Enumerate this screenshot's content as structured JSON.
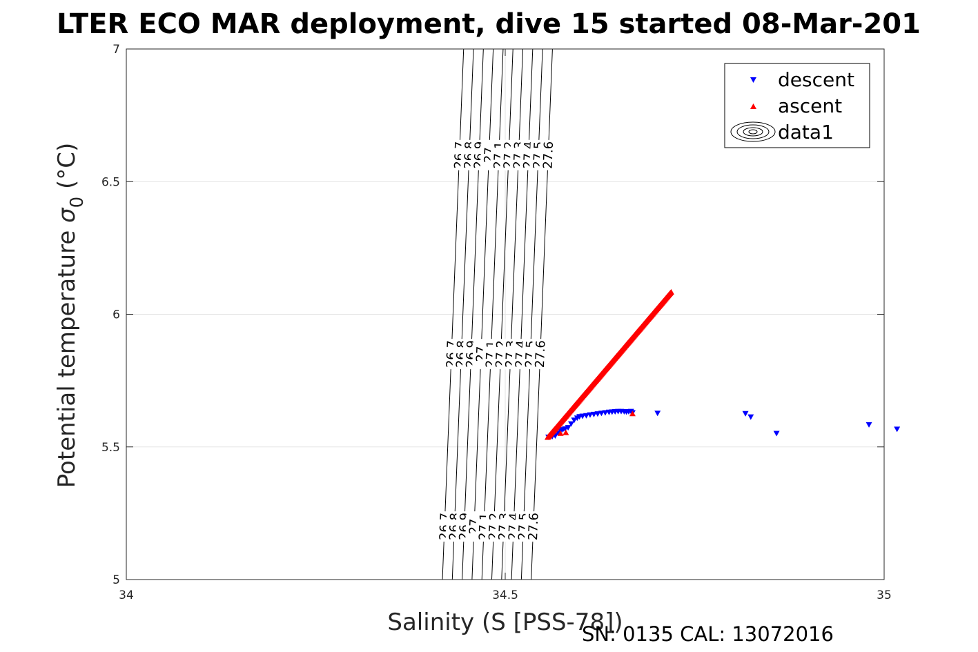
{
  "title": "LTER ECO MAR deployment, dive 15 started 08-Mar-201",
  "footer": "SN: 0135  CAL: 13072016",
  "chart_data": {
    "type": "scatter",
    "xlabel": "Salinity (S [PSS-78])",
    "ylabel_main": "Potential temperature ",
    "ylabel_sigma": "σ",
    "ylabel_sub": "0",
    "ylabel_unit": " (°C)",
    "xlim": [
      34,
      35
    ],
    "ylim": [
      5,
      7
    ],
    "xticks": [
      "34",
      "34.5",
      "35"
    ],
    "yticks": [
      "5",
      "5.5",
      "6",
      "6.5",
      "7"
    ],
    "grid": true,
    "legend_position": "top-right",
    "legend": [
      "descent",
      "ascent",
      "data1"
    ],
    "contour_levels": [
      "26.7",
      "26.8",
      "26.9",
      "27",
      "27.1",
      "27.2",
      "27.3",
      "27.4",
      "27.5",
      "27.6"
    ],
    "series": [
      {
        "name": "descent",
        "color": "#0000ff",
        "marker": "triangle-down",
        "points": [
          [
            34.557,
            5.536
          ],
          [
            34.562,
            5.538
          ],
          [
            34.566,
            5.541
          ],
          [
            34.57,
            5.551
          ],
          [
            34.573,
            5.56
          ],
          [
            34.576,
            5.564
          ],
          [
            34.579,
            5.567
          ],
          [
            34.583,
            5.572
          ],
          [
            34.587,
            5.586
          ],
          [
            34.591,
            5.6
          ],
          [
            34.595,
            5.608
          ],
          [
            34.598,
            5.613
          ],
          [
            34.602,
            5.615
          ],
          [
            34.607,
            5.617
          ],
          [
            34.612,
            5.62
          ],
          [
            34.617,
            5.622
          ],
          [
            34.622,
            5.624
          ],
          [
            34.627,
            5.626
          ],
          [
            34.632,
            5.628
          ],
          [
            34.637,
            5.63
          ],
          [
            34.641,
            5.631
          ],
          [
            34.645,
            5.632
          ],
          [
            34.649,
            5.633
          ],
          [
            34.653,
            5.633
          ],
          [
            34.657,
            5.632
          ],
          [
            34.66,
            5.631
          ],
          [
            34.663,
            5.632
          ],
          [
            34.666,
            5.633
          ],
          [
            34.668,
            5.628
          ],
          [
            34.701,
            5.626
          ],
          [
            34.817,
            5.625
          ],
          [
            34.824,
            5.612
          ],
          [
            34.858,
            5.55
          ],
          [
            34.98,
            5.583
          ],
          [
            35.017,
            5.566
          ]
        ]
      },
      {
        "name": "ascent",
        "color": "#ff0000",
        "marker": "triangle-up",
        "x_start": 34.556,
        "y_start": 5.537,
        "x_end": 34.719,
        "y_end": 6.085,
        "points_count": 200,
        "extra_points": [
          [
            34.573,
            5.552
          ],
          [
            34.58,
            5.555
          ],
          [
            34.668,
            5.626
          ]
        ]
      },
      {
        "name": "data1",
        "type": "contour",
        "levels": [
          26.7,
          26.8,
          26.9,
          27.0,
          27.1,
          27.2,
          27.3,
          27.4,
          27.5,
          27.6
        ]
      }
    ]
  }
}
